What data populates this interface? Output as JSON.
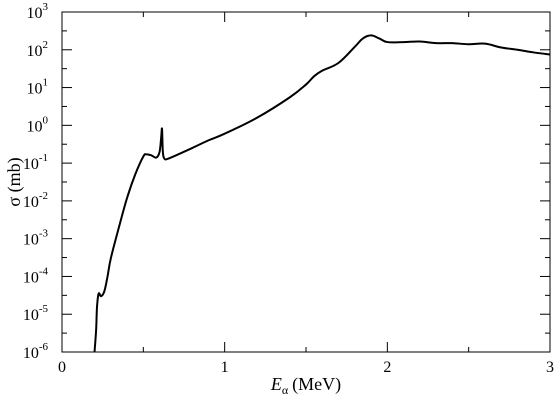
{
  "chart_data": {
    "type": "line",
    "title": "",
    "xlabel": {
      "var": "E",
      "sub": "α",
      "unit": "(MeV)"
    },
    "ylabel": "σ (mb)",
    "x_scale": "linear",
    "y_scale": "log",
    "xlim": [
      0,
      3
    ],
    "ylim": [
      1e-06,
      1000
    ],
    "grid": false,
    "legend": "none",
    "x_ticks": [
      "0",
      "1",
      "2",
      "3"
    ],
    "y_ticks": [
      {
        "base": "10",
        "exp": "-6"
      },
      {
        "base": "10",
        "exp": "-5"
      },
      {
        "base": "10",
        "exp": "-4"
      },
      {
        "base": "10",
        "exp": "-3"
      },
      {
        "base": "10",
        "exp": "-2"
      },
      {
        "base": "10",
        "exp": "-1"
      },
      {
        "base": "10",
        "exp": "0"
      },
      {
        "base": "10",
        "exp": "1"
      },
      {
        "base": "10",
        "exp": "2"
      },
      {
        "base": "10",
        "exp": "3"
      }
    ],
    "series": [
      {
        "color": "#000000",
        "x": [
          0.2,
          0.21,
          0.215,
          0.225,
          0.24,
          0.26,
          0.28,
          0.3,
          0.35,
          0.4,
          0.45,
          0.5,
          0.52,
          0.55,
          0.58,
          0.6,
          0.61,
          0.615,
          0.62,
          0.63,
          0.65,
          0.7,
          0.8,
          0.9,
          1.0,
          1.2,
          1.4,
          1.5,
          1.55,
          1.6,
          1.7,
          1.8,
          1.85,
          1.9,
          1.95,
          2.0,
          2.1,
          2.2,
          2.3,
          2.4,
          2.5,
          2.6,
          2.7,
          2.8,
          2.9,
          3.0
        ],
        "y": [
          1e-06,
          4e-06,
          1.5e-05,
          3.5e-05,
          3e-05,
          4e-05,
          0.0001,
          0.0003,
          0.002,
          0.012,
          0.05,
          0.15,
          0.17,
          0.16,
          0.14,
          0.2,
          0.5,
          0.8,
          0.2,
          0.13,
          0.13,
          0.16,
          0.25,
          0.4,
          0.6,
          1.6,
          5.5,
          12,
          20,
          28,
          45,
          120,
          200,
          240,
          200,
          160,
          160,
          165,
          150,
          150,
          140,
          145,
          115,
          100,
          85,
          75
        ]
      }
    ]
  }
}
